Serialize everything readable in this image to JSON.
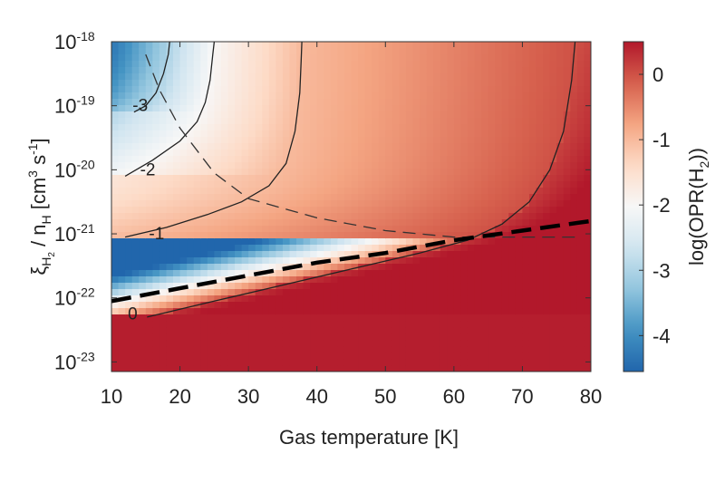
{
  "chart_data": {
    "type": "heatmap",
    "xlabel": "Gas temperature [K]",
    "ylabel": {
      "symbol": "ξ",
      "symbol_sub": "H",
      "symbol_subsub": "2",
      "divider": " / n",
      "divider_sub": "H",
      "units_open": " [cm",
      "units_exp1": "3",
      "units_mid": " s",
      "units_exp2": "-1",
      "units_close": "]"
    },
    "xlim": [
      10,
      80
    ],
    "ylim_log10": [
      -23.15,
      -18
    ],
    "y_scale": "log",
    "x_ticks": [
      10,
      20,
      30,
      40,
      50,
      60,
      70,
      80
    ],
    "x_tick_labels": [
      "10",
      "20",
      "30",
      "40",
      "50",
      "60",
      "70",
      "80"
    ],
    "y_ticks": [
      -18,
      -19,
      -20,
      -21,
      -22,
      -23
    ],
    "y_tick_base": "10",
    "y_tick_exponents": [
      "-18",
      "-19",
      "-20",
      "-21",
      "-22",
      "-23"
    ],
    "colorbar": {
      "label_pre": "log(OPR(H",
      "label_sub": "2",
      "label_post": "))",
      "range": [
        -4.55,
        0.5
      ],
      "ticks": [
        0,
        -1,
        -2,
        -3,
        -4
      ],
      "tick_labels": [
        "0",
        "-1",
        "-2",
        "-3",
        "-4"
      ],
      "colormap": [
        "#b2182b",
        "#d6604d",
        "#f4a582",
        "#fddbc7",
        "#f7f7f7",
        "#d1e5f0",
        "#92c5de",
        "#4393c3",
        "#2166ac"
      ]
    },
    "contours": [
      {
        "level": -3,
        "label": "-3",
        "points": [
          [
            13.3,
            -19.1
          ],
          [
            15.0,
            -19.0
          ],
          [
            16.5,
            -18.8
          ],
          [
            17.6,
            -18.5
          ],
          [
            18.3,
            -18.2
          ],
          [
            18.5,
            -18.0
          ]
        ]
      },
      {
        "level": -2,
        "label": "-2",
        "points": [
          [
            12.0,
            -20.1
          ],
          [
            16.0,
            -19.85
          ],
          [
            20.0,
            -19.55
          ],
          [
            22.5,
            -19.25
          ],
          [
            23.7,
            -18.95
          ],
          [
            24.4,
            -18.6
          ],
          [
            24.8,
            -18.2
          ],
          [
            25.0,
            -18.0
          ]
        ]
      },
      {
        "level": -1,
        "label": "-1",
        "points": [
          [
            12.0,
            -21.05
          ],
          [
            18.0,
            -20.9
          ],
          [
            24.0,
            -20.7
          ],
          [
            29.0,
            -20.5
          ],
          [
            33.0,
            -20.25
          ],
          [
            35.5,
            -19.9
          ],
          [
            36.8,
            -19.4
          ],
          [
            37.5,
            -18.8
          ],
          [
            37.7,
            -18.3
          ],
          [
            37.8,
            -18.0
          ]
        ]
      },
      {
        "level": 0,
        "label": "0",
        "points": [
          [
            15.2,
            -22.3
          ],
          [
            25.0,
            -22.05
          ],
          [
            35.0,
            -21.8
          ],
          [
            45.0,
            -21.55
          ],
          [
            55.0,
            -21.3
          ],
          [
            62.0,
            -21.1
          ],
          [
            67.0,
            -20.85
          ],
          [
            71.0,
            -20.5
          ],
          [
            74.0,
            -20.0
          ],
          [
            76.0,
            -19.4
          ],
          [
            77.2,
            -18.6
          ],
          [
            77.7,
            -18.0
          ]
        ]
      }
    ],
    "contour_label_positions": [
      [
        14.2,
        -19.0
      ],
      [
        15.3,
        -20.0
      ],
      [
        16.6,
        -21.0
      ],
      [
        13.1,
        -22.25
      ]
    ],
    "dashed_thin": [
      [
        15.0,
        -18.2
      ],
      [
        17.0,
        -18.75
      ],
      [
        20.0,
        -19.35
      ],
      [
        25.0,
        -20.05
      ],
      [
        30.0,
        -20.45
      ],
      [
        40.0,
        -20.75
      ],
      [
        50.0,
        -20.95
      ],
      [
        60.0,
        -21.05
      ],
      [
        70.0,
        -21.05
      ],
      [
        78.0,
        -21.05
      ]
    ],
    "dashed_thick": [
      [
        10.0,
        -22.05
      ],
      [
        20.0,
        -21.85
      ],
      [
        30.0,
        -21.65
      ],
      [
        40.0,
        -21.45
      ],
      [
        50.0,
        -21.3
      ],
      [
        60.0,
        -21.1
      ],
      [
        70.0,
        -20.95
      ],
      [
        80.0,
        -20.8
      ]
    ]
  }
}
